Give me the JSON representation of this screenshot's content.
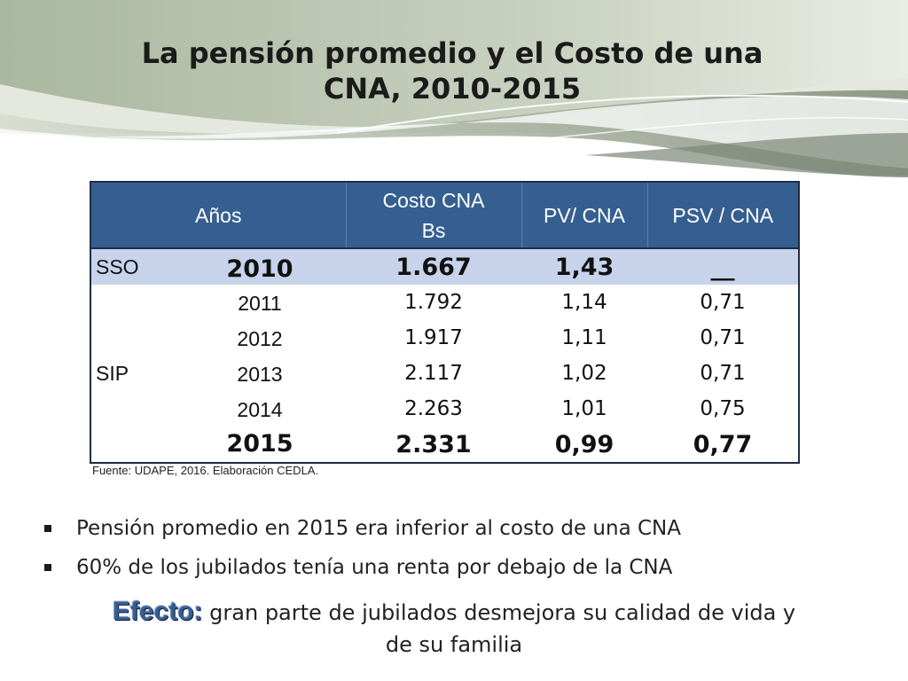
{
  "title": {
    "line1": "La pensión promedio y el Costo de una",
    "line2": "CNA, 2010-2015"
  },
  "table": {
    "headers": [
      "Años",
      "Costo CNA",
      "Bs",
      "PV/ CNA",
      "PSV / CNA"
    ],
    "groups": {
      "sso": "SSO",
      "sip": "SIP"
    },
    "rows": [
      [
        "2010",
        "1.667",
        "1,43",
        "__"
      ],
      [
        "2011",
        "1.792",
        "1,14",
        "0,71"
      ],
      [
        "2012",
        "1.917",
        "1,11",
        "0,71"
      ],
      [
        "2013",
        "2.117",
        "1,02",
        "0,71"
      ],
      [
        "2014",
        "2.263",
        "1,01",
        "0,75"
      ],
      [
        "2015",
        "2.331",
        "0,99",
        "0,77"
      ]
    ]
  },
  "source": "Fuente: UDAPE, 2016. Elaboración CEDLA.",
  "bullets": [
    "Pensión promedio en 2015 era inferior al costo de una CNA",
    "60% de los jubilados tenía una renta por debajo de la CNA"
  ],
  "effect": {
    "keyword": "Efecto:",
    "text_line1": " gran parte de jubilados desmejora su calidad de vida y",
    "text_line2": "de su familia"
  },
  "colors": {
    "header_bg": "#365f91",
    "highlight_row": "#c6d3ea",
    "wave_green": "#9aa892"
  }
}
